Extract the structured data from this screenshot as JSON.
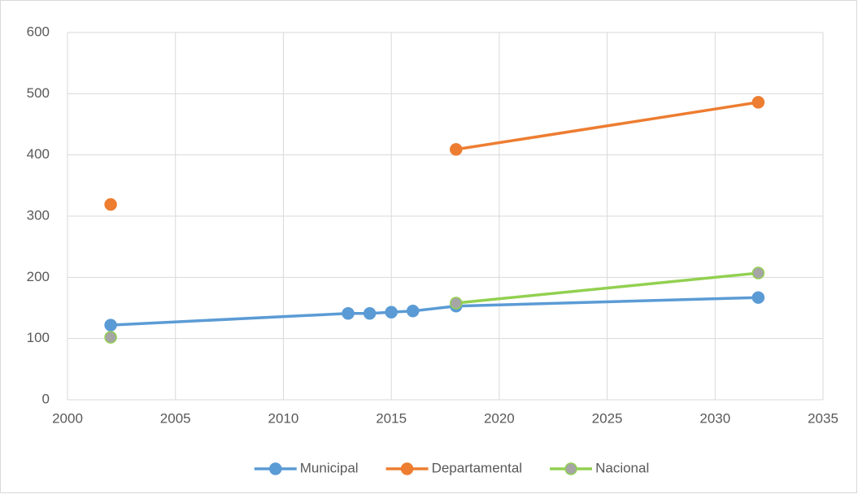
{
  "chart_data": {
    "type": "line",
    "x": [
      2002,
      2013,
      2014,
      2015,
      2016,
      2018,
      2032
    ],
    "series": [
      {
        "name": "Municipal",
        "color": "#5b9bd5",
        "values": [
          122,
          141,
          141,
          143,
          145,
          153,
          167
        ]
      },
      {
        "name": "Departamental",
        "color": "#ed7d31",
        "values": [
          319,
          null,
          null,
          null,
          null,
          409,
          486
        ]
      },
      {
        "name": "Nacional",
        "color": "#92d050",
        "marker_color": "#a5a5a5",
        "values": [
          102,
          null,
          null,
          null,
          null,
          158,
          207
        ]
      }
    ],
    "xlim": [
      2000,
      2035
    ],
    "xticks": [
      2000,
      2005,
      2010,
      2015,
      2020,
      2025,
      2030,
      2035
    ],
    "ylim": [
      0,
      600
    ],
    "yticks": [
      0,
      100,
      200,
      300,
      400,
      500,
      600
    ],
    "grid": true,
    "legend": "bottom"
  }
}
